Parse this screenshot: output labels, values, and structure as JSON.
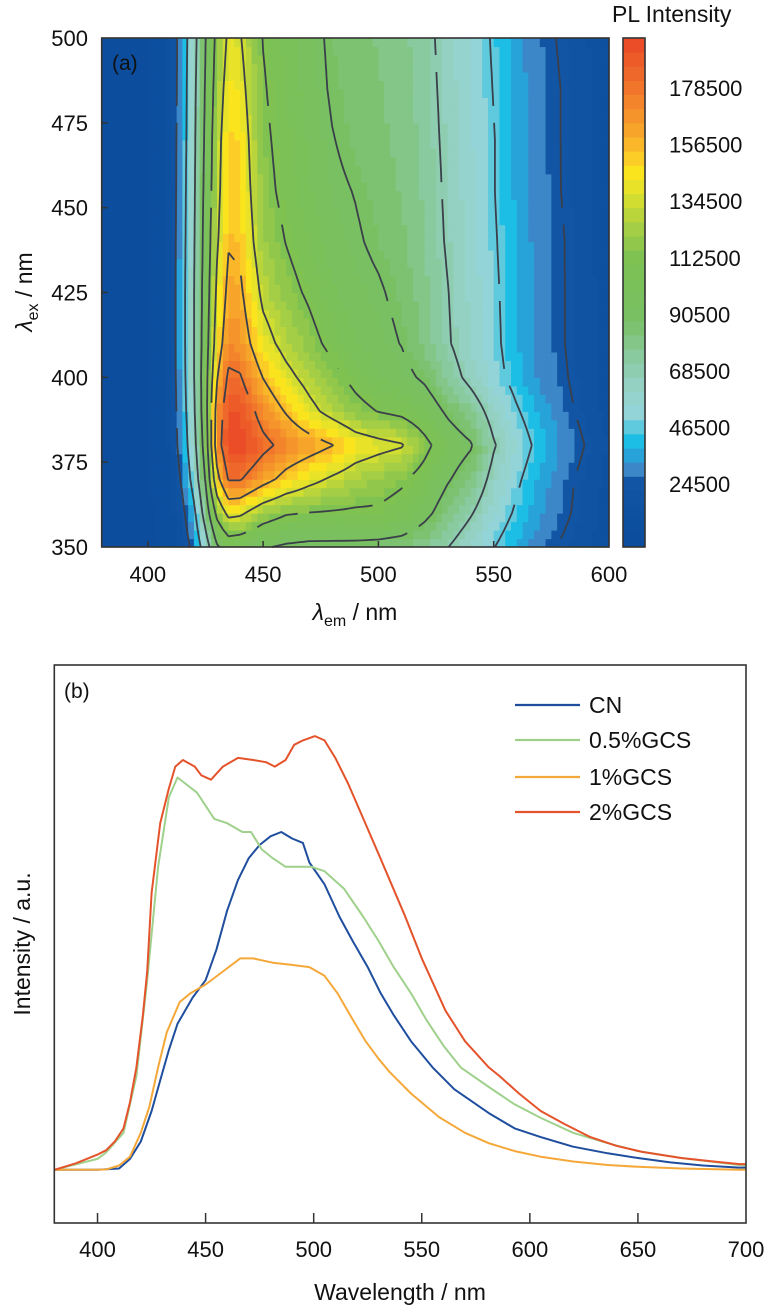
{
  "chart_data": [
    {
      "type": "heatmap",
      "panel_label": "(a)",
      "colorbar_title": "PL Intensity",
      "xlabel": {
        "symbol": "λ",
        "sub": "em",
        "unit": " / nm"
      },
      "ylabel": {
        "symbol": "λ",
        "sub": "ex",
        "unit": " / nm"
      },
      "xlim": [
        380,
        600
      ],
      "ylim": [
        350,
        500
      ],
      "xticks": [
        400,
        450,
        500,
        550,
        600
      ],
      "yticks": [
        350,
        375,
        400,
        425,
        450,
        475,
        500
      ],
      "colorbar_range": [
        0,
        198000
      ],
      "colorbar_ticks": [
        24500,
        46500,
        68500,
        90500,
        112500,
        134500,
        156500,
        178500
      ],
      "contour_levels": [
        24500,
        46500,
        68500,
        90500,
        112500,
        134500,
        156500,
        178500
      ],
      "colorscale": [
        [
          0,
          "#0b4c9c"
        ],
        [
          28000,
          "#1256a5"
        ],
        [
          30000,
          "#3d86c6"
        ],
        [
          35000,
          "#2c9fd8"
        ],
        [
          40000,
          "#0cbbe8"
        ],
        [
          45000,
          "#4dc6e0"
        ],
        [
          52000,
          "#93d4d9"
        ],
        [
          62000,
          "#96d2c6"
        ],
        [
          75000,
          "#88c99d"
        ],
        [
          88000,
          "#79c064"
        ],
        [
          112000,
          "#7cc152"
        ],
        [
          125000,
          "#a8cf44"
        ],
        [
          138000,
          "#e0e22c"
        ],
        [
          146000,
          "#fbe41c"
        ],
        [
          152000,
          "#fcc828"
        ],
        [
          162000,
          "#f7a52a"
        ],
        [
          175000,
          "#f27f2c"
        ],
        [
          188000,
          "#ee5f2a"
        ],
        [
          198000,
          "#e84626"
        ]
      ],
      "grid": {
        "em": [
          380,
          400,
          410,
          415,
          420,
          425,
          430,
          435,
          440,
          445,
          450,
          460,
          470,
          480,
          490,
          500,
          510,
          520,
          530,
          540,
          550,
          560,
          570,
          580,
          600
        ],
        "ex": [
          350,
          360,
          370,
          380,
          390,
          400,
          410,
          425,
          440,
          455,
          470,
          485,
          500
        ],
        "z": [
          [
            4000,
            5000,
            7000,
            14000,
            30000,
            58000,
            88000,
            100000,
            98000,
            95000,
            92000,
            88000,
            86000,
            86000,
            86000,
            85000,
            83000,
            78000,
            69000,
            58000,
            47000,
            37000,
            29000,
            23000,
            12000
          ],
          [
            4000,
            5000,
            8000,
            20000,
            42000,
            78000,
            118000,
            140000,
            138000,
            130000,
            122000,
            114000,
            112000,
            111000,
            110000,
            110000,
            106000,
            95000,
            82000,
            70000,
            56000,
            44000,
            34000,
            27000,
            13000
          ],
          [
            4000,
            5000,
            10000,
            28000,
            55000,
            92000,
            150000,
            180000,
            180000,
            172000,
            164000,
            150000,
            140000,
            132000,
            125000,
            120000,
            115000,
            105000,
            92000,
            82000,
            63000,
            49000,
            37000,
            28000,
            14000
          ],
          [
            4000,
            5000,
            12000,
            34000,
            62000,
            100000,
            168000,
            196000,
            198000,
            192000,
            184000,
            172000,
            165000,
            157000,
            145000,
            140000,
            136000,
            118000,
            100000,
            92000,
            70000,
            55000,
            42000,
            32000,
            16000
          ],
          [
            4000,
            5000,
            13000,
            37000,
            66000,
            104000,
            165000,
            192000,
            192000,
            182000,
            170000,
            155000,
            140000,
            128000,
            118000,
            112000,
            108000,
            100000,
            88000,
            78000,
            62000,
            48000,
            37000,
            28000,
            14000
          ],
          [
            4000,
            5000,
            14000,
            39000,
            68000,
            104000,
            155000,
            182000,
            180000,
            168000,
            156000,
            140000,
            128000,
            117000,
            108000,
            100000,
            95000,
            88000,
            76000,
            64000,
            52000,
            41000,
            32000,
            26000,
            13000
          ],
          [
            4000,
            5000,
            14000,
            40000,
            68000,
            102000,
            145000,
            170000,
            168000,
            155000,
            142000,
            128000,
            118000,
            108000,
            100000,
            95000,
            90000,
            81000,
            70000,
            60000,
            50000,
            39000,
            31000,
            25000,
            13000
          ],
          [
            4000,
            5000,
            14000,
            40000,
            68000,
            100000,
            138000,
            162000,
            160000,
            145000,
            130000,
            118000,
            110000,
            100000,
            95000,
            92000,
            87000,
            79000,
            69000,
            59000,
            49000,
            39000,
            31000,
            25000,
            13000
          ],
          [
            4000,
            5000,
            14000,
            39000,
            67000,
            98000,
            132000,
            155000,
            153000,
            137000,
            122000,
            112000,
            104000,
            96000,
            92000,
            88000,
            84000,
            77000,
            67000,
            58000,
            48000,
            38000,
            30000,
            25000,
            12000
          ],
          [
            4000,
            5000,
            13000,
            38000,
            66000,
            96000,
            128000,
            152000,
            150000,
            133000,
            118000,
            108000,
            100000,
            93000,
            90000,
            86000,
            82000,
            76000,
            66000,
            57000,
            47000,
            37000,
            30000,
            24000,
            12000
          ],
          [
            4000,
            5000,
            13000,
            37000,
            65000,
            94000,
            126000,
            150000,
            148000,
            130000,
            116000,
            106000,
            98000,
            91000,
            87000,
            84000,
            81000,
            75000,
            65000,
            56000,
            47000,
            37000,
            29000,
            24000,
            12000
          ],
          [
            4000,
            5000,
            12000,
            36000,
            64000,
            92000,
            122000,
            144000,
            142000,
            126000,
            114000,
            104000,
            96000,
            89000,
            86000,
            83000,
            80000,
            74000,
            64000,
            55000,
            46000,
            36000,
            29000,
            24000,
            12000
          ],
          [
            4000,
            5000,
            12000,
            35000,
            62000,
            90000,
            118000,
            138000,
            136000,
            122000,
            112000,
            103000,
            95000,
            88000,
            85000,
            82000,
            79000,
            73000,
            63000,
            54000,
            45000,
            35000,
            28000,
            23000,
            11000
          ]
        ]
      }
    },
    {
      "type": "line",
      "panel_label": "(b)",
      "xlabel": "Wavelength / nm",
      "ylabel": "Intensity / a.u.",
      "xlim": [
        380,
        700
      ],
      "ylim": [
        -0.117,
        1.163
      ],
      "xticks": [
        400,
        450,
        500,
        550,
        600,
        650,
        700
      ],
      "yticks": [],
      "legend": "top-right",
      "series": [
        {
          "name": "CN",
          "color": "#1f4e9e",
          "x": [
            380,
            400,
            410,
            415,
            420,
            425,
            429,
            433,
            437,
            444,
            450,
            455,
            460,
            465,
            470,
            475,
            480,
            485,
            490,
            495,
            498,
            505,
            512,
            518,
            525,
            531,
            537,
            545,
            555,
            565,
            581,
            593,
            605,
            620,
            636,
            650,
            665,
            680,
            697,
            700
          ],
          "y": [
            0.005,
            0.005,
            0.008,
            0.03,
            0.07,
            0.14,
            0.21,
            0.28,
            0.34,
            0.4,
            0.44,
            0.51,
            0.6,
            0.67,
            0.72,
            0.75,
            0.77,
            0.78,
            0.765,
            0.755,
            0.71,
            0.66,
            0.585,
            0.53,
            0.47,
            0.41,
            0.36,
            0.3,
            0.24,
            0.19,
            0.135,
            0.1,
            0.08,
            0.058,
            0.043,
            0.032,
            0.022,
            0.015,
            0.01,
            0.01
          ]
        },
        {
          "name": "0.5%GCS",
          "color": "#9fd18c",
          "x": [
            380,
            400,
            404,
            412,
            418,
            423,
            428,
            433,
            437,
            446,
            454,
            460,
            467,
            471,
            476,
            481,
            487,
            493,
            499,
            505,
            514,
            523,
            530,
            537,
            545,
            552,
            560,
            568,
            581,
            593,
            605,
            620,
            636,
            650,
            670,
            697,
            700
          ],
          "y": [
            0.005,
            0.03,
            0.045,
            0.09,
            0.22,
            0.44,
            0.7,
            0.86,
            0.905,
            0.87,
            0.81,
            0.8,
            0.78,
            0.78,
            0.74,
            0.72,
            0.7,
            0.7,
            0.7,
            0.69,
            0.65,
            0.585,
            0.53,
            0.47,
            0.41,
            0.35,
            0.29,
            0.24,
            0.195,
            0.155,
            0.124,
            0.09,
            0.066,
            0.048,
            0.032,
            0.016,
            0.015
          ]
        },
        {
          "name": "1%GCS",
          "color": "#f5a83a",
          "x": [
            380,
            400,
            404,
            410,
            415,
            420,
            424,
            428,
            432,
            438,
            443,
            450,
            458,
            466,
            472,
            481,
            490,
            498,
            505,
            511,
            518,
            524,
            530,
            535,
            545,
            558,
            570,
            581,
            593,
            605,
            620,
            636,
            650,
            670,
            697,
            700
          ],
          "y": [
            0.005,
            0.005,
            0.006,
            0.015,
            0.035,
            0.09,
            0.15,
            0.24,
            0.32,
            0.39,
            0.41,
            0.43,
            0.46,
            0.49,
            0.49,
            0.48,
            0.475,
            0.47,
            0.45,
            0.41,
            0.35,
            0.3,
            0.26,
            0.23,
            0.18,
            0.126,
            0.09,
            0.066,
            0.048,
            0.035,
            0.024,
            0.016,
            0.012,
            0.008,
            0.005,
            0.005
          ]
        },
        {
          "name": "2%GCS",
          "color": "#e4532b",
          "x": [
            380,
            390,
            400,
            404,
            408,
            412,
            415,
            418,
            421,
            423,
            425,
            429,
            433,
            436,
            439.5,
            445,
            448,
            452.5,
            458,
            465,
            472,
            478,
            482,
            487,
            491,
            495,
            500.6,
            505,
            510,
            516,
            523,
            530,
            536,
            542,
            550,
            561,
            570,
            581,
            586,
            595,
            605,
            616,
            628,
            640,
            652,
            670,
            685,
            697,
            700
          ],
          "y": [
            0.005,
            0.02,
            0.04,
            0.05,
            0.07,
            0.1,
            0.16,
            0.24,
            0.36,
            0.46,
            0.64,
            0.8,
            0.88,
            0.93,
            0.945,
            0.93,
            0.91,
            0.9,
            0.93,
            0.95,
            0.945,
            0.94,
            0.93,
            0.945,
            0.98,
            0.99,
            1.0,
            0.99,
            0.95,
            0.89,
            0.81,
            0.73,
            0.66,
            0.59,
            0.49,
            0.37,
            0.3,
            0.24,
            0.22,
            0.18,
            0.14,
            0.11,
            0.08,
            0.06,
            0.046,
            0.032,
            0.024,
            0.018,
            0.018
          ]
        }
      ]
    }
  ]
}
